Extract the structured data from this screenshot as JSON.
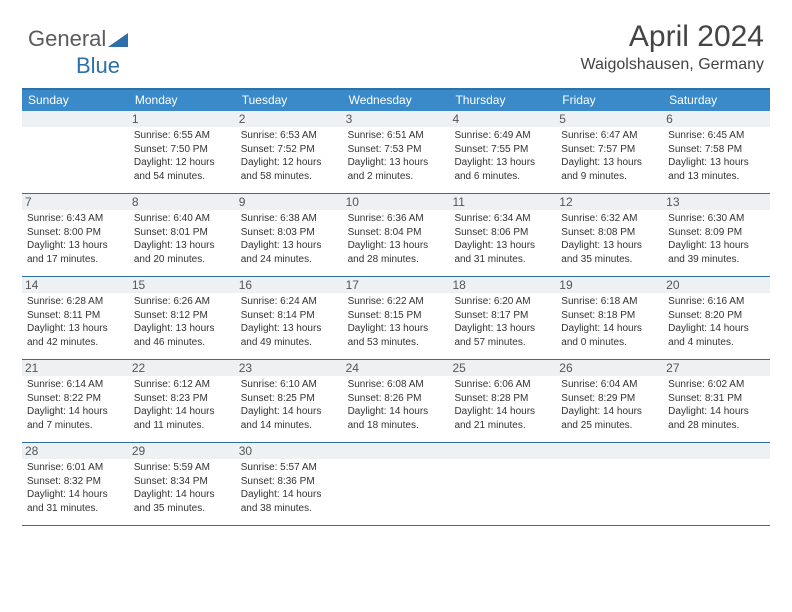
{
  "logo": {
    "text1": "General",
    "text2": "Blue"
  },
  "header": {
    "month_title": "April 2024",
    "location": "Waigolshausen, Germany"
  },
  "colors": {
    "header_bg": "#3a8ac9",
    "header_border": "#2f6fa7",
    "daynum_bg": "#eef1f3",
    "text": "#333333"
  },
  "weekdays": [
    "Sunday",
    "Monday",
    "Tuesday",
    "Wednesday",
    "Thursday",
    "Friday",
    "Saturday"
  ],
  "weeks": [
    [
      {
        "n": "",
        "sr": "",
        "ss": "",
        "dl": ""
      },
      {
        "n": "1",
        "sr": "Sunrise: 6:55 AM",
        "ss": "Sunset: 7:50 PM",
        "dl": "Daylight: 12 hours and 54 minutes."
      },
      {
        "n": "2",
        "sr": "Sunrise: 6:53 AM",
        "ss": "Sunset: 7:52 PM",
        "dl": "Daylight: 12 hours and 58 minutes."
      },
      {
        "n": "3",
        "sr": "Sunrise: 6:51 AM",
        "ss": "Sunset: 7:53 PM",
        "dl": "Daylight: 13 hours and 2 minutes."
      },
      {
        "n": "4",
        "sr": "Sunrise: 6:49 AM",
        "ss": "Sunset: 7:55 PM",
        "dl": "Daylight: 13 hours and 6 minutes."
      },
      {
        "n": "5",
        "sr": "Sunrise: 6:47 AM",
        "ss": "Sunset: 7:57 PM",
        "dl": "Daylight: 13 hours and 9 minutes."
      },
      {
        "n": "6",
        "sr": "Sunrise: 6:45 AM",
        "ss": "Sunset: 7:58 PM",
        "dl": "Daylight: 13 hours and 13 minutes."
      }
    ],
    [
      {
        "n": "7",
        "sr": "Sunrise: 6:43 AM",
        "ss": "Sunset: 8:00 PM",
        "dl": "Daylight: 13 hours and 17 minutes."
      },
      {
        "n": "8",
        "sr": "Sunrise: 6:40 AM",
        "ss": "Sunset: 8:01 PM",
        "dl": "Daylight: 13 hours and 20 minutes."
      },
      {
        "n": "9",
        "sr": "Sunrise: 6:38 AM",
        "ss": "Sunset: 8:03 PM",
        "dl": "Daylight: 13 hours and 24 minutes."
      },
      {
        "n": "10",
        "sr": "Sunrise: 6:36 AM",
        "ss": "Sunset: 8:04 PM",
        "dl": "Daylight: 13 hours and 28 minutes."
      },
      {
        "n": "11",
        "sr": "Sunrise: 6:34 AM",
        "ss": "Sunset: 8:06 PM",
        "dl": "Daylight: 13 hours and 31 minutes."
      },
      {
        "n": "12",
        "sr": "Sunrise: 6:32 AM",
        "ss": "Sunset: 8:08 PM",
        "dl": "Daylight: 13 hours and 35 minutes."
      },
      {
        "n": "13",
        "sr": "Sunrise: 6:30 AM",
        "ss": "Sunset: 8:09 PM",
        "dl": "Daylight: 13 hours and 39 minutes."
      }
    ],
    [
      {
        "n": "14",
        "sr": "Sunrise: 6:28 AM",
        "ss": "Sunset: 8:11 PM",
        "dl": "Daylight: 13 hours and 42 minutes."
      },
      {
        "n": "15",
        "sr": "Sunrise: 6:26 AM",
        "ss": "Sunset: 8:12 PM",
        "dl": "Daylight: 13 hours and 46 minutes."
      },
      {
        "n": "16",
        "sr": "Sunrise: 6:24 AM",
        "ss": "Sunset: 8:14 PM",
        "dl": "Daylight: 13 hours and 49 minutes."
      },
      {
        "n": "17",
        "sr": "Sunrise: 6:22 AM",
        "ss": "Sunset: 8:15 PM",
        "dl": "Daylight: 13 hours and 53 minutes."
      },
      {
        "n": "18",
        "sr": "Sunrise: 6:20 AM",
        "ss": "Sunset: 8:17 PM",
        "dl": "Daylight: 13 hours and 57 minutes."
      },
      {
        "n": "19",
        "sr": "Sunrise: 6:18 AM",
        "ss": "Sunset: 8:18 PM",
        "dl": "Daylight: 14 hours and 0 minutes."
      },
      {
        "n": "20",
        "sr": "Sunrise: 6:16 AM",
        "ss": "Sunset: 8:20 PM",
        "dl": "Daylight: 14 hours and 4 minutes."
      }
    ],
    [
      {
        "n": "21",
        "sr": "Sunrise: 6:14 AM",
        "ss": "Sunset: 8:22 PM",
        "dl": "Daylight: 14 hours and 7 minutes."
      },
      {
        "n": "22",
        "sr": "Sunrise: 6:12 AM",
        "ss": "Sunset: 8:23 PM",
        "dl": "Daylight: 14 hours and 11 minutes."
      },
      {
        "n": "23",
        "sr": "Sunrise: 6:10 AM",
        "ss": "Sunset: 8:25 PM",
        "dl": "Daylight: 14 hours and 14 minutes."
      },
      {
        "n": "24",
        "sr": "Sunrise: 6:08 AM",
        "ss": "Sunset: 8:26 PM",
        "dl": "Daylight: 14 hours and 18 minutes."
      },
      {
        "n": "25",
        "sr": "Sunrise: 6:06 AM",
        "ss": "Sunset: 8:28 PM",
        "dl": "Daylight: 14 hours and 21 minutes."
      },
      {
        "n": "26",
        "sr": "Sunrise: 6:04 AM",
        "ss": "Sunset: 8:29 PM",
        "dl": "Daylight: 14 hours and 25 minutes."
      },
      {
        "n": "27",
        "sr": "Sunrise: 6:02 AM",
        "ss": "Sunset: 8:31 PM",
        "dl": "Daylight: 14 hours and 28 minutes."
      }
    ],
    [
      {
        "n": "28",
        "sr": "Sunrise: 6:01 AM",
        "ss": "Sunset: 8:32 PM",
        "dl": "Daylight: 14 hours and 31 minutes."
      },
      {
        "n": "29",
        "sr": "Sunrise: 5:59 AM",
        "ss": "Sunset: 8:34 PM",
        "dl": "Daylight: 14 hours and 35 minutes."
      },
      {
        "n": "30",
        "sr": "Sunrise: 5:57 AM",
        "ss": "Sunset: 8:36 PM",
        "dl": "Daylight: 14 hours and 38 minutes."
      },
      {
        "n": "",
        "sr": "",
        "ss": "",
        "dl": ""
      },
      {
        "n": "",
        "sr": "",
        "ss": "",
        "dl": ""
      },
      {
        "n": "",
        "sr": "",
        "ss": "",
        "dl": ""
      },
      {
        "n": "",
        "sr": "",
        "ss": "",
        "dl": ""
      }
    ]
  ]
}
